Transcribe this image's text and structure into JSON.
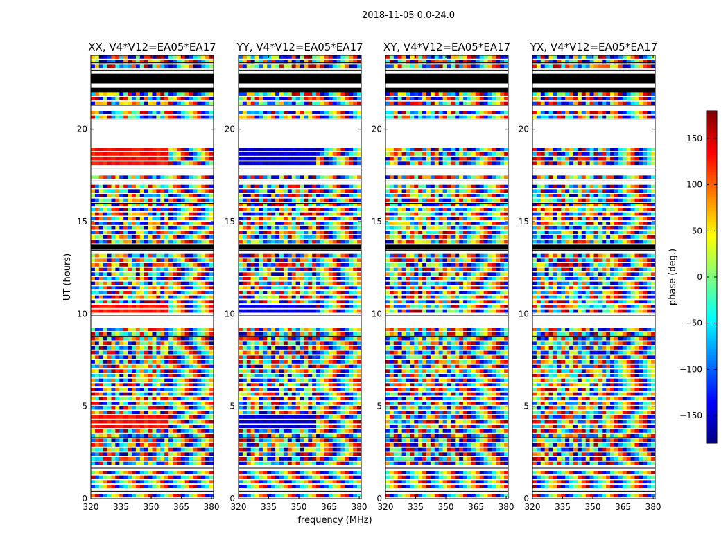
{
  "figure": {
    "suptitle": "2018-11-05 0.0-24.0",
    "xlabel": "frequency (MHz)",
    "ylabel": "UT (hours)"
  },
  "chart_data": {
    "type": "heatmap",
    "title": "2018-11-05 0.0-24.0",
    "xlabel": "frequency (MHz)",
    "ylabel": "UT (hours)",
    "xlim": [
      320,
      381
    ],
    "ylim": [
      0,
      24
    ],
    "xticks": [
      320,
      335,
      350,
      365,
      380
    ],
    "yticks": [
      0,
      5,
      10,
      15,
      20
    ],
    "grid": false,
    "colormap": "jet",
    "panels": [
      {
        "title": "XX, V4*V12=EA05*EA17",
        "polarization": "XX",
        "dominant_phase_deg": 130
      },
      {
        "title": "YY, V4*V12=EA05*EA17",
        "polarization": "YY",
        "dominant_phase_deg": -150
      },
      {
        "title": "XY, V4*V12=EA05*EA17",
        "polarization": "XY",
        "dominant_phase_deg": null
      },
      {
        "title": "YX, V4*V12=EA05*EA17",
        "polarization": "YX",
        "dominant_phase_deg": null
      }
    ],
    "colorbar": {
      "label": "phase (deg.)",
      "range": [
        -180,
        180
      ],
      "ticks": [
        -150,
        -100,
        -50,
        0,
        50,
        100,
        150
      ],
      "colors": [
        "#00007f",
        "#0000ff",
        "#007fff",
        "#00ffff",
        "#7fff7f",
        "#ffff00",
        "#ff7f00",
        "#ff0000",
        "#7f0000"
      ]
    },
    "flagged_ut_ranges": [
      [
        0.25,
        0.4
      ],
      [
        1.5,
        1.65
      ],
      [
        1.95,
        2.05
      ],
      [
        3.2,
        3.3
      ],
      [
        8.7,
        8.8
      ],
      [
        9.3,
        9.9
      ],
      [
        13.3,
        13.45
      ],
      [
        15.9,
        16.0
      ],
      [
        17.1,
        17.2
      ],
      [
        17.5,
        17.9
      ],
      [
        19.1,
        20.5
      ],
      [
        21.0,
        21.3
      ],
      [
        22.3,
        22.5
      ],
      [
        23.0,
        23.2
      ],
      [
        23.5,
        23.6
      ]
    ],
    "dense_ut_ranges": [
      [
        13.55,
        13.85
      ],
      [
        22.0,
        22.9
      ]
    ]
  }
}
